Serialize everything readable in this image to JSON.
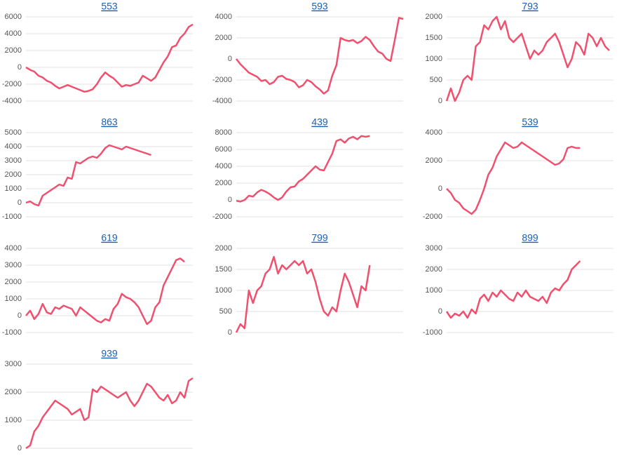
{
  "chart_data": [
    {
      "type": "line",
      "title": "553",
      "color": "#f0506e",
      "grid": true,
      "ylim": [
        -4000,
        6000
      ],
      "yticks": [
        -4000,
        -2000,
        0,
        2000,
        4000,
        6000
      ],
      "values": [
        0,
        -300,
        -500,
        -1000,
        -1200,
        -1600,
        -1800,
        -2200,
        -2500,
        -2300,
        -2100,
        -2300,
        -2500,
        -2700,
        -2900,
        -2800,
        -2600,
        -2000,
        -1200,
        -600,
        -1000,
        -1300,
        -1800,
        -2300,
        -2100,
        -2200,
        -2000,
        -1800,
        -1000,
        -1300,
        -1600,
        -1200,
        -300,
        600,
        1300,
        2400,
        2600,
        3500,
        4000,
        4800,
        5100
      ]
    },
    {
      "type": "line",
      "title": "593",
      "color": "#f0506e",
      "grid": true,
      "ylim": [
        -4000,
        4000
      ],
      "yticks": [
        -4000,
        -2000,
        0,
        2000,
        4000
      ],
      "values": [
        0,
        -500,
        -900,
        -1300,
        -1500,
        -1700,
        -2100,
        -2000,
        -2400,
        -2200,
        -1700,
        -1600,
        -1900,
        -2000,
        -2200,
        -2700,
        -2500,
        -2000,
        -2200,
        -2600,
        -2900,
        -3300,
        -3000,
        -1600,
        -600,
        2000,
        1800,
        1700,
        1800,
        1500,
        1700,
        2100,
        1800,
        1200,
        700,
        500,
        0,
        -200,
        1800,
        3900,
        3800
      ]
    },
    {
      "type": "line",
      "title": "793",
      "color": "#f0506e",
      "grid": true,
      "ylim": [
        0,
        2000
      ],
      "yticks": [
        0,
        500,
        1000,
        1500,
        2000
      ],
      "values": [
        0,
        300,
        0,
        200,
        500,
        600,
        500,
        1300,
        1400,
        1800,
        1700,
        1900,
        2000,
        1700,
        1900,
        1500,
        1400,
        1500,
        1600,
        1300,
        1000,
        1200,
        1100,
        1200,
        1400,
        1500,
        1600,
        1400,
        1100,
        800,
        1000,
        1400,
        1300,
        1100,
        1600,
        1500,
        1300,
        1500,
        1300,
        1200,
        null
      ]
    },
    {
      "type": "line",
      "title": "863",
      "color": "#f0506e",
      "grid": true,
      "ylim": [
        -1000,
        5000
      ],
      "yticks": [
        -1000,
        0,
        1000,
        2000,
        3000,
        4000,
        5000
      ],
      "values": [
        0,
        100,
        -100,
        -200,
        500,
        700,
        900,
        1100,
        1300,
        1200,
        1800,
        1700,
        2900,
        2800,
        3000,
        3200,
        3300,
        3200,
        3500,
        3900,
        4100,
        4000,
        3900,
        3800,
        4000,
        3900,
        3800,
        3700,
        3600,
        3500,
        3400,
        null,
        null,
        null,
        null,
        null,
        null,
        null,
        null,
        null,
        null
      ]
    },
    {
      "type": "line",
      "title": "439",
      "color": "#f0506e",
      "grid": true,
      "ylim": [
        -2000,
        8000
      ],
      "yticks": [
        -2000,
        0,
        2000,
        4000,
        6000,
        8000
      ],
      "values": [
        -100,
        -200,
        0,
        500,
        400,
        900,
        1200,
        1000,
        700,
        300,
        0,
        300,
        1000,
        1500,
        1600,
        2200,
        2500,
        3000,
        3500,
        4000,
        3600,
        3500,
        4500,
        5500,
        7000,
        7200,
        6800,
        7300,
        7500,
        7200,
        7600,
        7500,
        7600,
        null,
        null,
        null,
        null,
        null,
        null,
        null,
        null
      ]
    },
    {
      "type": "line",
      "title": "539",
      "color": "#f0506e",
      "grid": true,
      "ylim": [
        -2000,
        4000
      ],
      "yticks": [
        -2000,
        0,
        2000,
        4000
      ],
      "values": [
        0,
        -300,
        -800,
        -1000,
        -1400,
        -1600,
        -1800,
        -1500,
        -800,
        0,
        1000,
        1500,
        2300,
        2800,
        3300,
        3100,
        2900,
        3000,
        3300,
        3100,
        2900,
        2700,
        2500,
        2300,
        2100,
        1900,
        1700,
        1800,
        2100,
        2900,
        3000,
        2900,
        2900,
        null,
        null,
        null,
        null,
        null,
        null,
        null,
        null
      ]
    },
    {
      "type": "line",
      "title": "619",
      "color": "#f0506e",
      "grid": true,
      "ylim": [
        -1000,
        4000
      ],
      "yticks": [
        -1000,
        0,
        1000,
        2000,
        3000,
        4000
      ],
      "values": [
        0,
        300,
        -200,
        100,
        700,
        200,
        100,
        500,
        400,
        600,
        500,
        400,
        0,
        500,
        300,
        100,
        -100,
        -300,
        -400,
        -200,
        -300,
        400,
        700,
        1300,
        1100,
        1000,
        800,
        500,
        0,
        -500,
        -300,
        500,
        800,
        1800,
        2300,
        2800,
        3300,
        3400,
        3200,
        null,
        null
      ]
    },
    {
      "type": "line",
      "title": "799",
      "color": "#f0506e",
      "grid": true,
      "ylim": [
        0,
        2000
      ],
      "yticks": [
        0,
        500,
        1000,
        1500,
        2000
      ],
      "values": [
        0,
        200,
        100,
        1000,
        700,
        1000,
        1100,
        1400,
        1500,
        1800,
        1400,
        1600,
        1500,
        1600,
        1700,
        1600,
        1700,
        1400,
        1500,
        1200,
        800,
        500,
        400,
        600,
        500,
        1000,
        1400,
        1200,
        900,
        600,
        1100,
        1000,
        1600,
        null,
        null,
        null,
        null,
        null,
        null,
        null,
        null
      ]
    },
    {
      "type": "line",
      "title": "899",
      "color": "#f0506e",
      "grid": true,
      "ylim": [
        -1000,
        3000
      ],
      "yticks": [
        -1000,
        0,
        1000,
        2000,
        3000
      ],
      "values": [
        0,
        -300,
        -100,
        -200,
        0,
        -300,
        100,
        -100,
        600,
        800,
        500,
        900,
        700,
        1000,
        800,
        600,
        500,
        900,
        700,
        1000,
        700,
        600,
        500,
        700,
        400,
        900,
        1100,
        1000,
        1300,
        1500,
        2000,
        2200,
        2400,
        null,
        null,
        null,
        null,
        null,
        null,
        null,
        null
      ]
    },
    {
      "type": "line",
      "title": "939",
      "color": "#f0506e",
      "grid": true,
      "ylim": [
        0,
        3000
      ],
      "yticks": [
        0,
        1000,
        2000,
        3000
      ],
      "values": [
        0,
        100,
        600,
        800,
        1100,
        1300,
        1500,
        1700,
        1600,
        1500,
        1400,
        1200,
        1300,
        1400,
        1000,
        1100,
        2100,
        2000,
        2200,
        2100,
        2000,
        1900,
        1800,
        1900,
        2000,
        1700,
        1500,
        1700,
        2000,
        2300,
        2200,
        2000,
        1800,
        1700,
        1900,
        1600,
        1700,
        2000,
        1800,
        2400,
        2500
      ]
    }
  ]
}
